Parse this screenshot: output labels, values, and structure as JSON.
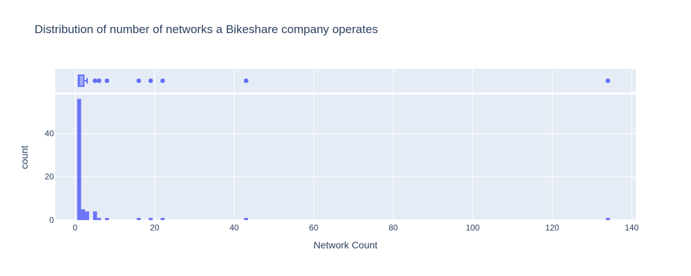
{
  "chart_data": {
    "type": "histogram",
    "title": "Distribution of number of networks a Bikeshare company operates",
    "xlabel": "Network Count",
    "ylabel": "count",
    "xlim": [
      -5,
      141
    ],
    "ylim": [
      0,
      58
    ],
    "x_ticks": [
      0,
      20,
      40,
      60,
      80,
      100,
      120,
      140
    ],
    "y_ticks": [
      0,
      20,
      40
    ],
    "grid": true,
    "colors": {
      "bar": "#636efa",
      "plot_bg": "#e5ecf6",
      "grid": "#ffffff",
      "text": "#2a3f5f"
    },
    "bins": [
      {
        "start": 0.5,
        "end": 1.5,
        "count": 56
      },
      {
        "start": 1.5,
        "end": 2.5,
        "count": 5
      },
      {
        "start": 2.5,
        "end": 3.5,
        "count": 4
      },
      {
        "start": 4.5,
        "end": 5.5,
        "count": 4
      },
      {
        "start": 5.5,
        "end": 6.5,
        "count": 1
      },
      {
        "start": 7.5,
        "end": 8.5,
        "count": 1
      },
      {
        "start": 15.5,
        "end": 16.5,
        "count": 1
      },
      {
        "start": 18.5,
        "end": 19.5,
        "count": 1
      },
      {
        "start": 21.5,
        "end": 22.5,
        "count": 1
      },
      {
        "start": 42.5,
        "end": 43.5,
        "count": 1
      },
      {
        "start": 133.5,
        "end": 134.5,
        "count": 1
      }
    ],
    "box": {
      "min": 1,
      "q1": 1,
      "median": 1,
      "q3": 2,
      "upper_fence": 3,
      "outliers": [
        5,
        6,
        8,
        16,
        19,
        22,
        43,
        134
      ]
    }
  }
}
